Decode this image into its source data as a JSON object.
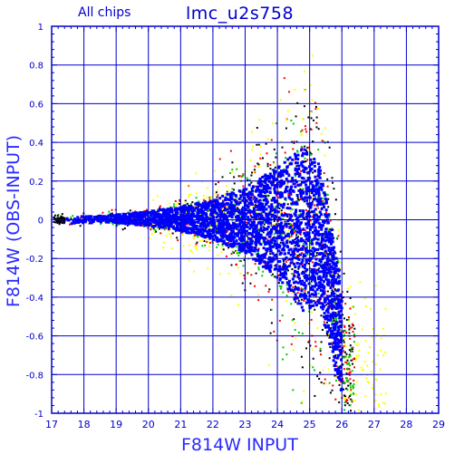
{
  "chart_data": {
    "type": "scatter",
    "title": "lmc_u2s758",
    "subtitle": "All chips",
    "xlabel": "F814W INPUT",
    "ylabel": "F814W (OBS-INPUT)",
    "xlim": [
      17,
      29
    ],
    "ylim": [
      -1,
      1
    ],
    "x_ticks": [
      "17",
      "18",
      "19",
      "20",
      "21",
      "22",
      "23",
      "24",
      "25",
      "26",
      "27",
      "28",
      "29"
    ],
    "y_ticks": [
      "1",
      "0.8",
      "0.6",
      "0.4",
      "0.2",
      "0",
      "-0.2",
      "-0.4",
      "-0.6",
      "-0.8",
      "-1"
    ],
    "grid": true,
    "series": [
      {
        "color": "#0000ff",
        "envelope": [
          {
            "x": 17.0,
            "lower": -0.03,
            "upper": 0.03
          },
          {
            "x": 18.0,
            "lower": -0.02,
            "upper": 0.02
          },
          {
            "x": 19.0,
            "lower": -0.02,
            "upper": 0.03
          },
          {
            "x": 20.0,
            "lower": -0.04,
            "upper": 0.05
          },
          {
            "x": 21.0,
            "lower": -0.07,
            "upper": 0.08
          },
          {
            "x": 22.0,
            "lower": -0.12,
            "upper": 0.12
          },
          {
            "x": 23.0,
            "lower": -0.2,
            "upper": 0.2
          },
          {
            "x": 24.0,
            "lower": -0.35,
            "upper": 0.32
          },
          {
            "x": 24.8,
            "lower": -0.55,
            "upper": 0.45
          },
          {
            "x": 25.3,
            "lower": -0.5,
            "upper": 0.35
          },
          {
            "x": 25.6,
            "lower": -0.7,
            "upper": 0.1
          },
          {
            "x": 25.9,
            "lower": -0.9,
            "upper": -0.2
          },
          {
            "x": 26.1,
            "lower": -1.0,
            "upper": -0.55
          }
        ]
      },
      {
        "color": "#000000",
        "note": ""
      },
      {
        "color": "#ff0000"
      },
      {
        "color": "#00cc00"
      },
      {
        "color": "#ffff00"
      }
    ],
    "colors": {
      "axis": "#0000cc",
      "grid": "#0000cc",
      "text": "#0000cc"
    }
  }
}
